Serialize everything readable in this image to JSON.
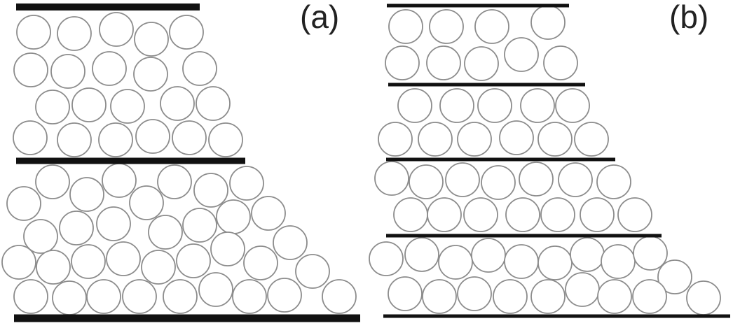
{
  "panels": [
    {
      "label": "(a)"
    },
    {
      "label": "(b)"
    }
  ],
  "colors": {
    "background": "#ffffff",
    "disk_stroke": "#8c8c8c",
    "wall": "#111111",
    "label": "#222222"
  }
}
